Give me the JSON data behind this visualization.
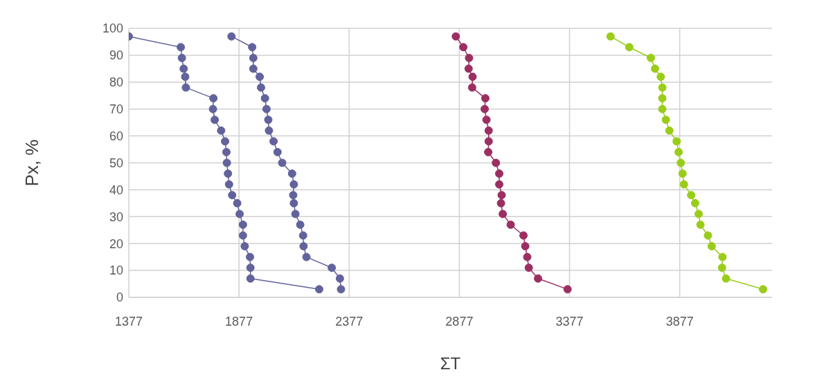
{
  "chart_data": {
    "type": "line",
    "xlabel": "ΣT",
    "ylabel": "Px, %",
    "xlim": [
      1377,
      4296
    ],
    "xticks": [
      1377,
      1877,
      2377,
      2877,
      3377,
      3877
    ],
    "ylim": [
      0,
      100
    ],
    "yticks": [
      0,
      10,
      20,
      30,
      40,
      50,
      60,
      70,
      80,
      90,
      100
    ],
    "grid": true,
    "marker": "circle",
    "line_style": "solid",
    "series": [
      {
        "color": "#62629c",
        "x": [
          1377,
          1613,
          1618,
          1626,
          1633,
          1636,
          1761,
          1759,
          1767,
          1796,
          1814,
          1820,
          1822,
          1827,
          1832,
          1846,
          1869,
          1880,
          1895,
          1895,
          1903,
          1927,
          1929,
          1929,
          2241
        ],
        "values": [
          97,
          93,
          89,
          85,
          82,
          78,
          74,
          70,
          66,
          62,
          58,
          54,
          50,
          46,
          42,
          38,
          35,
          31,
          27,
          23,
          19,
          15,
          11,
          7,
          3
        ]
      },
      {
        "color": "#62629c",
        "x": [
          1843,
          1937,
          1942,
          1942,
          1971,
          1977,
          1995,
          2002,
          2010,
          2013,
          2034,
          2052,
          2073,
          2118,
          2126,
          2123,
          2126,
          2133,
          2155,
          2168,
          2170,
          2183,
          2298,
          2335,
          2340
        ],
        "values": [
          97,
          93,
          89,
          85,
          82,
          78,
          74,
          70,
          66,
          62,
          58,
          54,
          50,
          46,
          42,
          38,
          35,
          31,
          27,
          23,
          19,
          15,
          11,
          7,
          3
        ]
      },
      {
        "color": "#9b2f62",
        "x": [
          2861,
          2895,
          2921,
          2919,
          2937,
          2935,
          2995,
          2992,
          3000,
          3010,
          3010,
          3008,
          3043,
          3058,
          3058,
          3069,
          3066,
          3074,
          3110,
          3168,
          3176,
          3185,
          3192,
          3234,
          3368
        ],
        "values": [
          97,
          93,
          89,
          85,
          82,
          78,
          74,
          70,
          66,
          62,
          58,
          54,
          50,
          46,
          42,
          38,
          35,
          31,
          27,
          23,
          19,
          15,
          11,
          7,
          3
        ]
      },
      {
        "color": "#9acc1a",
        "x": [
          3563,
          3648,
          3746,
          3765,
          3791,
          3798,
          3798,
          3798,
          3814,
          3830,
          3863,
          3872,
          3882,
          3890,
          3896,
          3929,
          3947,
          3963,
          3971,
          4005,
          4022,
          4071,
          4069,
          4087,
          4255
        ],
        "values": [
          97,
          93,
          89,
          85,
          82,
          78,
          74,
          70,
          66,
          62,
          58,
          54,
          50,
          46,
          42,
          38,
          35,
          31,
          27,
          23,
          19,
          15,
          11,
          7,
          3
        ]
      }
    ]
  }
}
